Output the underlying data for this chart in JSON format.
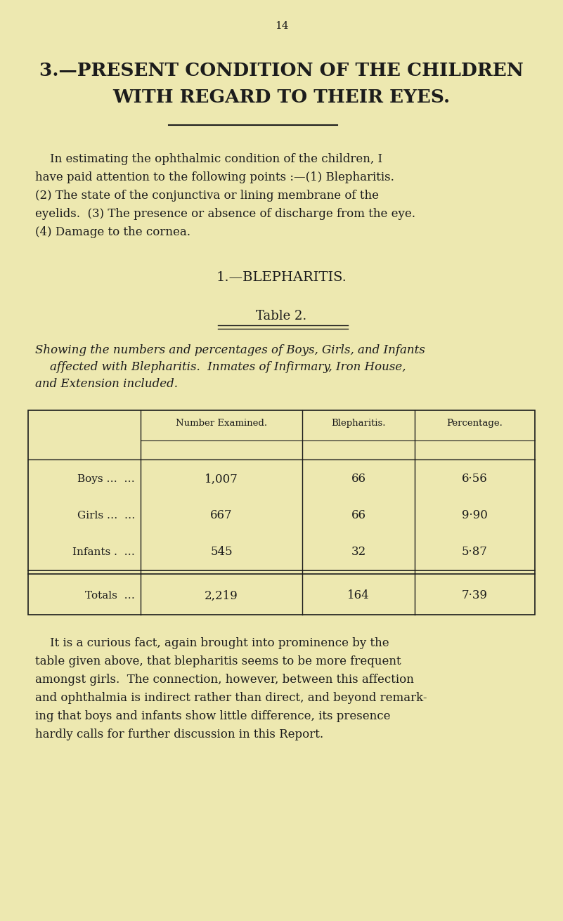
{
  "page_number": "14",
  "bg_color": "#ede8b0",
  "text_color": "#1c1c1c",
  "heading1": "3.—PRESENT CONDITION OF THE CHILDREN",
  "heading2": "WITH REGARD TO THEIR EYES.",
  "body_para1_lines": [
    "    In estimating the ophthalmic condition of the children, I",
    "have paid attention to the following points :—(1) Blepharitis.",
    "(2) The state of the conjunctiva or lining membrane of the",
    "eyelids.  (3) The presence or absence of discharge from the eye.",
    "(4) Damage to the cornea."
  ],
  "section_heading": "1.—BLEPHARITIS.",
  "table_heading": "Table 2.",
  "table_caption_lines": [
    "Showing the numbers and percentages of Boys, Girls, and Infants",
    "    affected with Blepharitis.  Inmates of Infirmary, Iron House,",
    "and Extension included."
  ],
  "col_headers": [
    "Number Examined.",
    "Blepharitis.",
    "Percentage."
  ],
  "row_labels": [
    "Boys …  …",
    "Girls …  …",
    "Infants .  …",
    "Totals  …"
  ],
  "row_data": [
    [
      "1,007",
      "66",
      "6·56"
    ],
    [
      "667",
      "66",
      "9·90"
    ],
    [
      "545",
      "32",
      "5·87"
    ],
    [
      "2,219",
      "164",
      "7·39"
    ]
  ],
  "body_para2_lines": [
    "    It is a curious fact, again brought into prominence by the",
    "table given above, that blepharitis seems to be more frequent",
    "amongst girls.  The connection, however, between this affection",
    "and ophthalmia is indirect rather than direct, and beyond remark-",
    "ing that boys and infants show little difference, its presence",
    "hardly calls for further discussion in this Report."
  ]
}
